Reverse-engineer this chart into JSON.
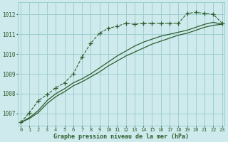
{
  "title": "Graphe pression niveau de la mer (hPa)",
  "background_color": "#ceeaed",
  "grid_color": "#9dcfcf",
  "line_color": "#2d5e2d",
  "x_min": 0,
  "x_max": 23,
  "y_min": 1006.4,
  "y_max": 1012.6,
  "yticks": [
    1007,
    1008,
    1009,
    1010,
    1011,
    1012
  ],
  "xticks": [
    0,
    1,
    2,
    3,
    4,
    5,
    6,
    7,
    8,
    9,
    10,
    11,
    12,
    13,
    14,
    15,
    16,
    17,
    18,
    19,
    20,
    21,
    22,
    23
  ],
  "dotted_x": [
    0,
    1,
    2,
    3,
    4,
    5,
    6,
    7,
    8,
    9,
    10,
    11,
    12,
    13,
    14,
    15,
    16,
    17,
    18,
    19,
    20,
    21,
    22,
    23
  ],
  "dotted_y": [
    1006.55,
    1007.05,
    1007.65,
    1007.95,
    1008.3,
    1008.55,
    1009.0,
    1009.85,
    1010.55,
    1011.05,
    1011.3,
    1011.4,
    1011.55,
    1011.5,
    1011.55,
    1011.55,
    1011.55,
    1011.55,
    1011.55,
    1012.05,
    1012.1,
    1012.05,
    1012.0,
    1011.55
  ],
  "solid1_x": [
    0,
    1,
    2,
    3,
    4,
    5,
    6,
    7,
    8,
    9,
    10,
    11,
    12,
    13,
    14,
    15,
    16,
    17,
    18,
    19,
    20,
    21,
    22,
    23
  ],
  "solid1_y": [
    1006.55,
    1006.75,
    1007.05,
    1007.5,
    1007.85,
    1008.1,
    1008.4,
    1008.6,
    1008.85,
    1009.1,
    1009.4,
    1009.65,
    1009.9,
    1010.1,
    1010.3,
    1010.5,
    1010.65,
    1010.8,
    1010.95,
    1011.05,
    1011.2,
    1011.35,
    1011.45,
    1011.5
  ],
  "solid2_x": [
    0,
    1,
    2,
    3,
    4,
    5,
    6,
    7,
    8,
    9,
    10,
    11,
    12,
    13,
    14,
    15,
    16,
    17,
    18,
    19,
    20,
    21,
    22,
    23
  ],
  "solid2_y": [
    1006.55,
    1006.8,
    1007.15,
    1007.65,
    1008.0,
    1008.25,
    1008.55,
    1008.75,
    1009.0,
    1009.3,
    1009.6,
    1009.9,
    1010.15,
    1010.4,
    1010.6,
    1010.75,
    1010.9,
    1011.0,
    1011.1,
    1011.2,
    1011.35,
    1011.5,
    1011.6,
    1011.5
  ]
}
